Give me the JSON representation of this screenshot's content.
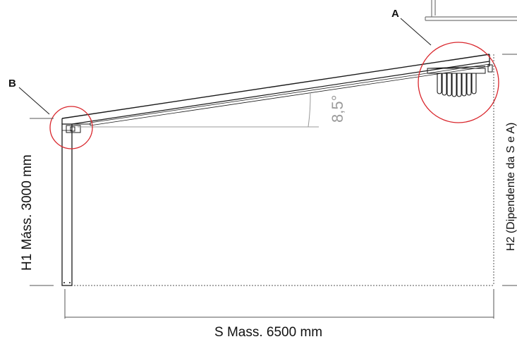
{
  "callouts": {
    "a": "A",
    "b": "B"
  },
  "angle": {
    "label": "8,5°"
  },
  "dimensions": {
    "h1": "H1 Máss. 3000 mm",
    "h2": "H2 (Dipendente da S e A)",
    "s": "S Mass. 6500 mm"
  },
  "colors": {
    "line": "#1a1a1a",
    "dim": "#555555",
    "angle": "#999999",
    "highlight": "#d9262c",
    "wall": "#777777"
  }
}
